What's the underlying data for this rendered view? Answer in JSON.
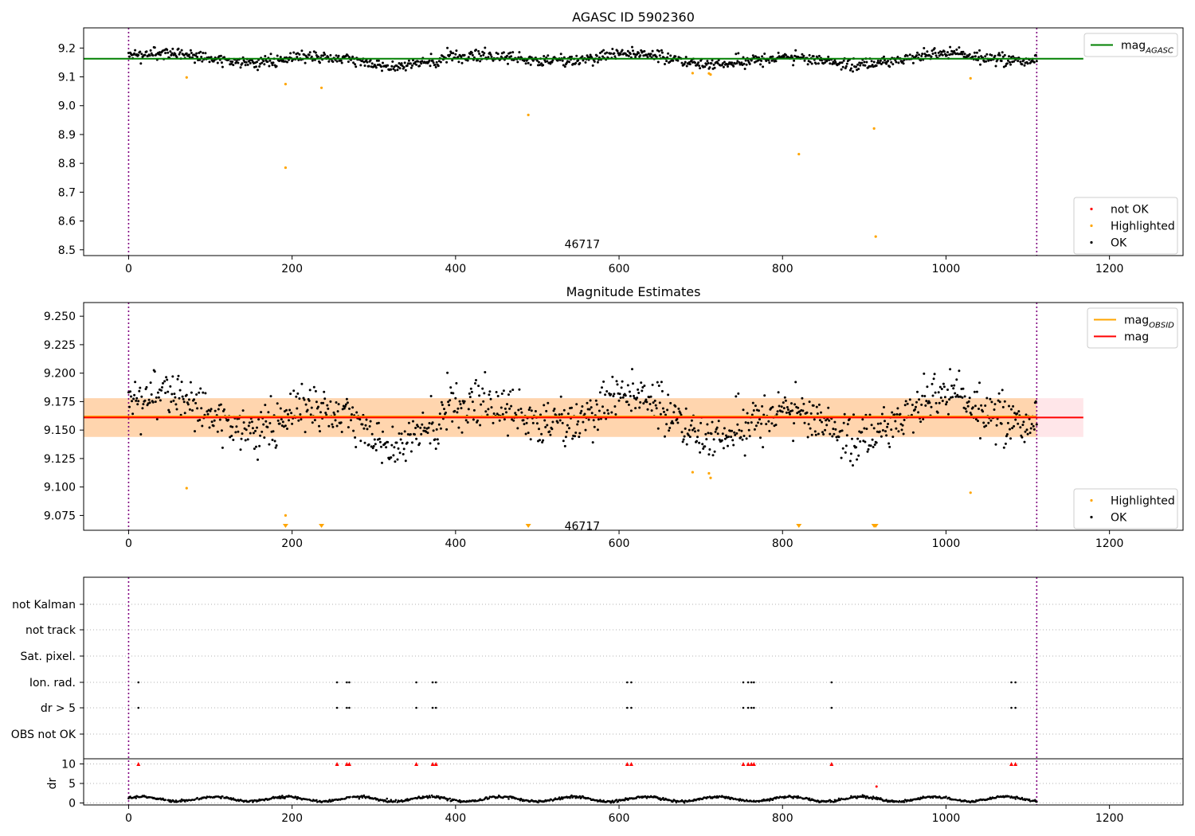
{
  "chart_data": [
    {
      "type": "scatter",
      "title": "AGASC ID 5902360",
      "xlim": [
        -55,
        1290
      ],
      "ylim": [
        8.48,
        9.27
      ],
      "xticks": [
        0,
        200,
        400,
        600,
        800,
        1000,
        1200
      ],
      "yticks": [
        8.5,
        8.6,
        8.7,
        8.8,
        8.9,
        9.0,
        9.1,
        9.2
      ],
      "ytick_labels": [
        "8.5",
        "8.6",
        "8.7",
        "8.8",
        "8.9",
        "9.0",
        "9.1",
        "9.2"
      ],
      "vlines": [
        0,
        1111
      ],
      "annotation": {
        "text": "46717",
        "x": 555,
        "y": 8.52
      },
      "legends": [
        {
          "placement": "top-right",
          "entries": [
            {
              "label_main": "mag",
              "label_sub": "AGASC",
              "color": "#008000",
              "marker": "line"
            }
          ]
        },
        {
          "placement": "bottom-right",
          "entries": [
            {
              "label": "not OK",
              "color": "#ff0000",
              "marker": "dot"
            },
            {
              "label": "Highlighted",
              "color": "#ffa500",
              "marker": "dot"
            },
            {
              "label": "OK",
              "color": "#000000",
              "marker": "dot"
            }
          ]
        }
      ],
      "hline": {
        "name": "mag_AGASC",
        "y": 9.163,
        "x_range": [
          -55,
          1168
        ],
        "color": "#008000"
      },
      "ok_series": {
        "name": "OK",
        "color": "#000000",
        "x_range": [
          0,
          1111
        ],
        "count": 1112,
        "base": 9.161,
        "wave_amp": 0.022,
        "wave_period": 190,
        "noise": 0.012
      },
      "highlighted": {
        "name": "Highlighted",
        "color": "#ffa500",
        "points": [
          [
            71,
            9.098
          ],
          [
            192,
            9.075
          ],
          [
            192,
            8.785
          ],
          [
            236,
            9.062
          ],
          [
            489,
            8.968
          ],
          [
            690,
            9.113
          ],
          [
            710,
            9.112
          ],
          [
            712,
            9.108
          ],
          [
            820,
            8.832
          ],
          [
            912,
            8.921
          ],
          [
            914,
            8.546
          ],
          [
            1030,
            9.095
          ]
        ]
      }
    },
    {
      "type": "scatter",
      "title": "Magnitude Estimates",
      "xlim": [
        -55,
        1290
      ],
      "ylim": [
        9.062,
        9.262
      ],
      "xticks": [
        0,
        200,
        400,
        600,
        800,
        1000,
        1200
      ],
      "yticks": [
        9.075,
        9.1,
        9.125,
        9.15,
        9.175,
        9.2,
        9.225,
        9.25
      ],
      "ytick_labels": [
        "9.075",
        "9.100",
        "9.125",
        "9.150",
        "9.175",
        "9.200",
        "9.225",
        "9.250"
      ],
      "vlines": [
        0,
        1111
      ],
      "annotation": {
        "text": "46717",
        "x": 555,
        "y": 9.066
      },
      "legends": [
        {
          "placement": "top-right",
          "entries": [
            {
              "label_main": "mag",
              "label_sub": "OBSID",
              "color": "#ffa500",
              "marker": "line"
            },
            {
              "label": "mag",
              "color": "#ff0000",
              "marker": "line"
            }
          ]
        },
        {
          "placement": "bottom-right",
          "entries": [
            {
              "label": "Highlighted",
              "color": "#ffa500",
              "marker": "dot"
            },
            {
              "label": "OK",
              "color": "#000000",
              "marker": "dot"
            }
          ]
        }
      ],
      "bands": [
        {
          "y_range": [
            9.144,
            9.178
          ],
          "x_range": [
            -55,
            1168
          ],
          "color": "#ffb6c1",
          "opacity": 0.35
        },
        {
          "y_range": [
            9.144,
            9.178
          ],
          "x_range": [
            -55,
            1111
          ],
          "color": "#ffa500",
          "opacity": 0.25
        }
      ],
      "lines": [
        {
          "name": "mag_OBSID",
          "y": 9.162,
          "x_range": [
            -55,
            1111
          ],
          "color": "#ffa500"
        },
        {
          "name": "mag",
          "y": 9.161,
          "x_range": [
            -55,
            1168
          ],
          "color": "#ff0000"
        }
      ],
      "highlighted": {
        "name": "Highlighted",
        "color": "#ffa500",
        "points": [
          [
            71,
            9.099
          ],
          [
            192,
            9.075
          ],
          [
            690,
            9.113
          ],
          [
            710,
            9.112
          ],
          [
            712,
            9.108
          ],
          [
            1030,
            9.095
          ]
        ],
        "offscale_x": [
          192,
          236,
          489,
          820,
          912,
          914
        ]
      }
    },
    {
      "type": "scatter",
      "title": "",
      "xlim": [
        -55,
        1290
      ],
      "xticks": [
        0,
        200,
        400,
        600,
        800,
        1000,
        1200
      ],
      "vlines": [
        0,
        1111
      ],
      "flag_labels": [
        "not Kalman",
        "not track",
        "Sat. pixel.",
        "Ion. rad.",
        "dr > 5",
        "OBS not OK"
      ],
      "flag_x": [
        12,
        255,
        267,
        270,
        352,
        372,
        376,
        610,
        615,
        752,
        758,
        762,
        765,
        860,
        1080,
        1085
      ],
      "flagged_rows": [
        "Ion. rad.",
        "dr > 5"
      ],
      "dr": {
        "ylabel": "dr",
        "ylim": [
          -0.5,
          10.5
        ],
        "yticks": [
          0,
          5,
          10
        ],
        "threshold": 10,
        "outlier": [
          915,
          4.2
        ]
      }
    }
  ]
}
